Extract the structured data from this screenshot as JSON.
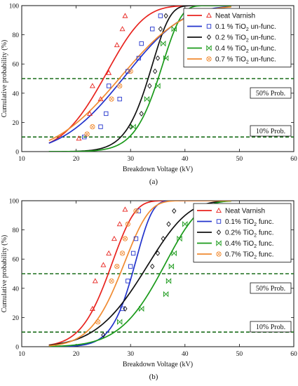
{
  "chart_data": [
    {
      "type": "scatter",
      "label": "(a)",
      "xlabel": "Breakdown Voltage (kV)",
      "ylabel": "Cumulative probability (%)",
      "xlim": [
        10,
        60
      ],
      "ylim": [
        0,
        100
      ],
      "xticks": [
        "10",
        "20",
        "30",
        "40",
        "50",
        "60"
      ],
      "yticks": [
        "0",
        "20",
        "40",
        "60",
        "80",
        "100"
      ],
      "grid": false,
      "legend_position": "top-right",
      "annotations": [
        {
          "text": "50% Prob.",
          "y": 50
        },
        {
          "text": "10% Prob.",
          "y": 10
        }
      ],
      "series": [
        {
          "name": "Neat Varnish",
          "sub": "",
          "suffix": "",
          "color": "#e8231e",
          "marker": "triangle",
          "scale": 27,
          "k": 4.8,
          "points": [
            [
              20.5,
              9
            ],
            [
              22.5,
              26
            ],
            [
              23,
              45
            ],
            [
              24.5,
              36
            ],
            [
              26,
              54
            ],
            [
              27.5,
              73
            ],
            [
              28.5,
              84
            ],
            [
              29,
              93
            ]
          ]
        },
        {
          "name": "0.1 % TiO",
          "sub": "2",
          "suffix": " un-func.",
          "color": "#2233cc",
          "marker": "square",
          "scale": 31.5,
          "k": 3.8,
          "points": [
            [
              21.5,
              10
            ],
            [
              24.5,
              17
            ],
            [
              25.5,
              26
            ],
            [
              26,
              45
            ],
            [
              28,
              36
            ],
            [
              29.5,
              55
            ],
            [
              31.5,
              64
            ],
            [
              32,
              74
            ],
            [
              34,
              84
            ],
            [
              35.5,
              93
            ]
          ]
        },
        {
          "name": "0.2 % TiO",
          "sub": "2",
          "suffix": " un-func.",
          "color": "#111111",
          "marker": "diamond",
          "scale": 34.3,
          "k": 11.5,
          "points": [
            [
              30,
              17
            ],
            [
              32,
              26
            ],
            [
              33.5,
              45
            ],
            [
              34.5,
              55
            ],
            [
              35,
              64
            ],
            [
              35.5,
              84
            ],
            [
              36.5,
              93
            ]
          ]
        },
        {
          "name": "0.4 % TiO",
          "sub": "2",
          "suffix": " un-func.",
          "color": "#1a9a1a",
          "marker": "bowtie",
          "scale": 36.2,
          "k": 11.5,
          "points": [
            [
              30.5,
              17
            ],
            [
              33,
              36
            ],
            [
              35,
              45
            ],
            [
              36,
              74
            ],
            [
              36.5,
              64
            ],
            [
              38,
              84
            ]
          ]
        },
        {
          "name": "0.7 % TiO",
          "sub": "2",
          "suffix": " un-func.",
          "color": "#f08a30",
          "marker": "circlex",
          "scale": 31,
          "k": 3.5,
          "points": [
            [
              22,
              12
            ],
            [
              23,
              17
            ],
            [
              26.5,
              36
            ],
            [
              28,
              45
            ],
            [
              30,
              55
            ]
          ]
        }
      ]
    },
    {
      "type": "scatter",
      "label": "(b)",
      "xlabel": "Breakdown Voltage (kV)",
      "ylabel": "Cumulative probability (%)",
      "xlim": [
        10,
        60
      ],
      "ylim": [
        0,
        100
      ],
      "xticks": [
        "10",
        "20",
        "30",
        "40",
        "50",
        "60"
      ],
      "yticks": [
        "0",
        "20",
        "40",
        "60",
        "80",
        "100"
      ],
      "grid": false,
      "legend_position": "top-right",
      "annotations": [
        {
          "text": "50% Prob.",
          "y": 50
        },
        {
          "text": "10% Prob.",
          "y": 10
        }
      ],
      "series": [
        {
          "name": "Neat Varnish",
          "sub": "",
          "suffix": "",
          "color": "#e8231e",
          "marker": "triangle",
          "scale": 27.2,
          "k": 7.5,
          "points": [
            [
              23,
              26
            ],
            [
              23.5,
              45
            ],
            [
              25,
              56
            ],
            [
              26,
              64
            ],
            [
              27,
              74
            ],
            [
              28,
              84
            ],
            [
              29,
              94
            ]
          ]
        },
        {
          "name": "0.1% TiO",
          "sub": "2",
          "suffix": " func.",
          "color": "#2233cc",
          "marker": "square",
          "scale": 31.3,
          "k": 11.5,
          "points": [
            [
              28.5,
              26
            ],
            [
              29.5,
              45
            ],
            [
              30,
              55
            ],
            [
              30.5,
              64
            ],
            [
              31,
              74
            ],
            [
              31.5,
              93
            ]
          ]
        },
        {
          "name": "0.2% TiO",
          "sub": "2",
          "suffix": " func.",
          "color": "#111111",
          "marker": "diamond",
          "scale": 34.4,
          "k": 5.5,
          "points": [
            [
              25,
              8
            ],
            [
              29,
              26
            ],
            [
              34,
              55
            ],
            [
              35,
              64
            ],
            [
              36,
              74
            ],
            [
              37,
              84
            ],
            [
              38,
              93
            ]
          ]
        },
        {
          "name": "0.4% TiO",
          "sub": "2",
          "suffix": " func.",
          "color": "#1a9a1a",
          "marker": "bowtie",
          "scale": 37.3,
          "k": 7,
          "points": [
            [
              28,
              17
            ],
            [
              32,
              26
            ],
            [
              36.5,
              36
            ],
            [
              37,
              45
            ],
            [
              37.5,
              55
            ],
            [
              38,
              64
            ],
            [
              39,
              74
            ],
            [
              40,
              84
            ]
          ]
        },
        {
          "name": "0.7% TiO",
          "sub": "2",
          "suffix": " func.",
          "color": "#f08a30",
          "marker": "circlex",
          "scale": 29.5,
          "k": 7.5,
          "points": [
            [
              24,
              17
            ],
            [
              26.5,
              45
            ],
            [
              27.5,
              55
            ],
            [
              28.5,
              64
            ],
            [
              29,
              74
            ],
            [
              29.5,
              84
            ],
            [
              31,
              93
            ]
          ]
        }
      ]
    }
  ]
}
